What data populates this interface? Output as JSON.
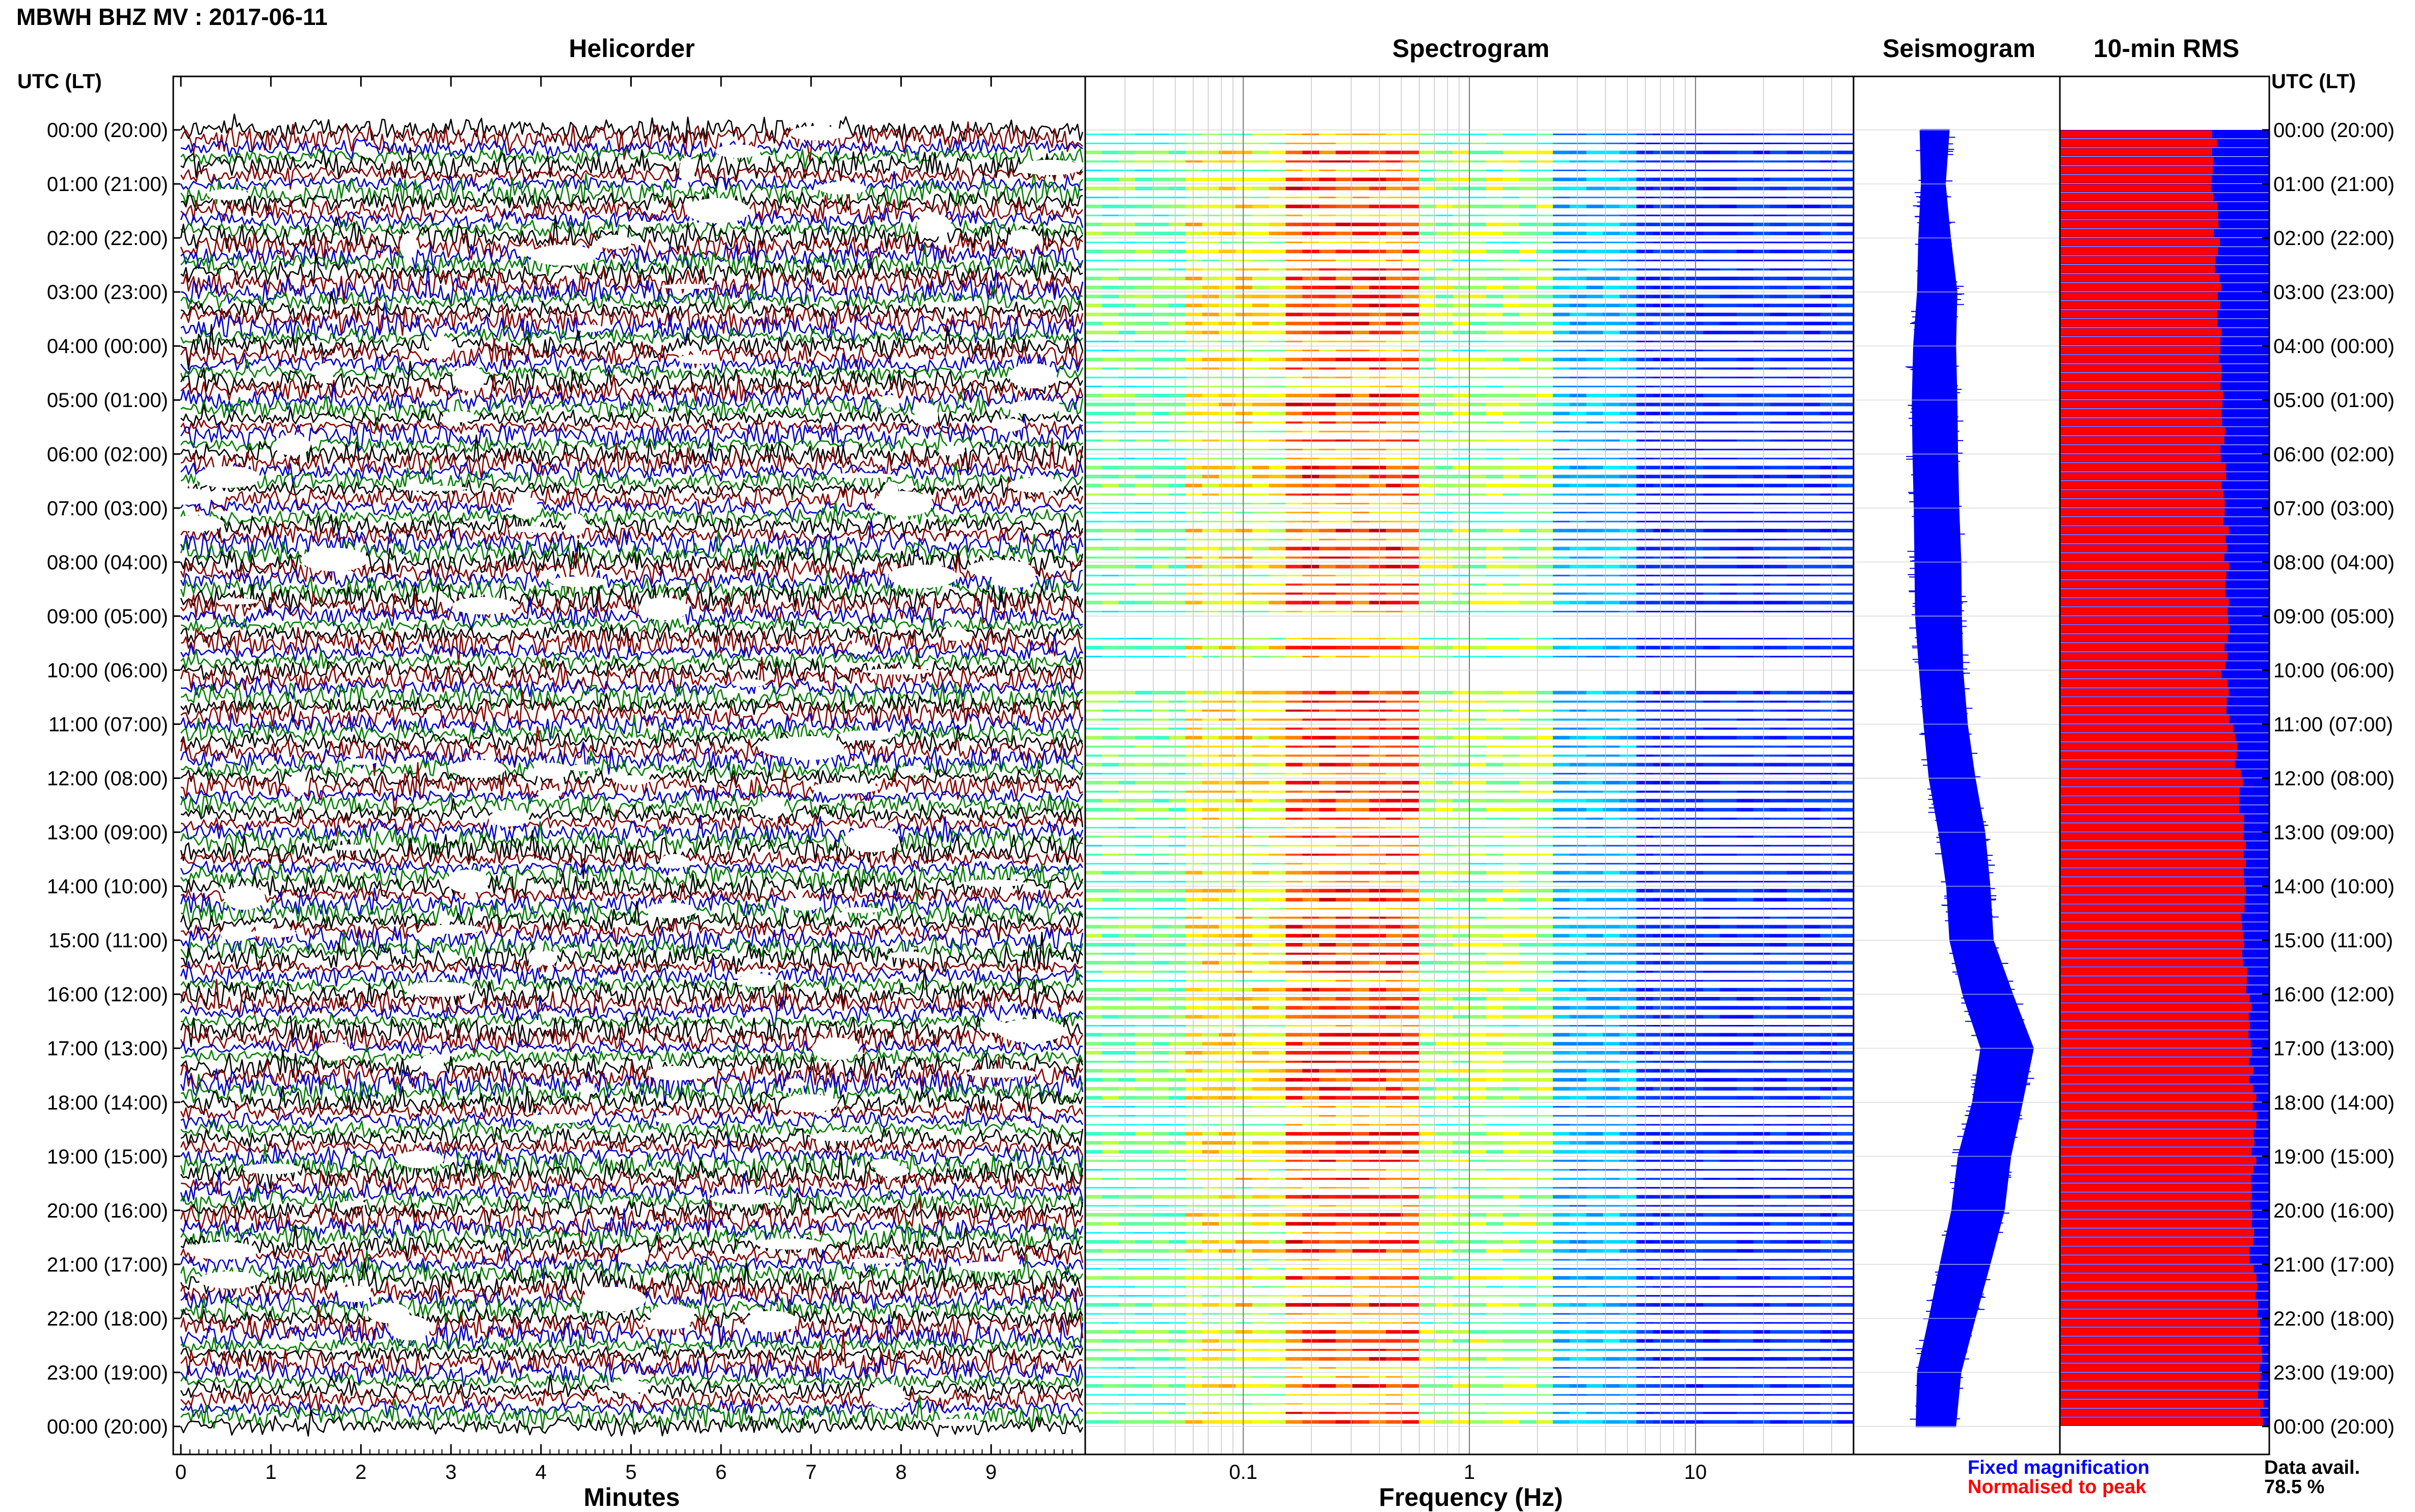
{
  "header": {
    "title": "MBWH BHZ MV : 2017-06-11",
    "time_axis_label_left": "UTC (LT)",
    "time_axis_label_right": "UTC (LT)"
  },
  "panels": {
    "helicorder": "Helicorder",
    "spectrogram": "Spectrogram",
    "seismogram": "Seismogram",
    "rms": "10-min RMS"
  },
  "legend": {
    "fixed": "Fixed magnification",
    "fixed_color": "#0000ff",
    "normalised": "Normalised to peak",
    "normalised_color": "#ff0000",
    "data_avail_label": "Data avail.",
    "data_avail_value": "78.5 %"
  },
  "chart_data": [
    {
      "type": "line",
      "name": "Helicorder",
      "title": "Helicorder",
      "xlabel": "Minutes",
      "xlim": [
        0,
        10
      ],
      "x_ticks": [
        "0",
        "1",
        "2",
        "3",
        "4",
        "5",
        "6",
        "7",
        "8",
        "9"
      ],
      "y_tick_labels": [
        "00:00 (20:00)",
        "01:00 (21:00)",
        "02:00 (22:00)",
        "03:00 (23:00)",
        "04:00 (00:00)",
        "05:00 (01:00)",
        "06:00 (02:00)",
        "07:00 (03:00)",
        "08:00 (04:00)",
        "09:00 (05:00)",
        "10:00 (06:00)",
        "11:00 (07:00)",
        "12:00 (08:00)",
        "13:00 (09:00)",
        "14:00 (10:00)",
        "15:00 (11:00)",
        "16:00 (12:00)",
        "17:00 (13:00)",
        "18:00 (14:00)",
        "19:00 (15:00)",
        "20:00 (16:00)",
        "21:00 (17:00)",
        "22:00 (18:00)",
        "23:00 (19:00)",
        "00:00 (20:00)"
      ],
      "trace_colors": [
        "#000000",
        "#8b0000",
        "#0000cd",
        "#008000"
      ],
      "traces_per_hour": 6
    },
    {
      "type": "heatmap",
      "name": "Spectrogram",
      "title": "Spectrogram",
      "xlabel": "Frequency (Hz)",
      "x_scale": "log",
      "xlim": [
        0.02,
        50
      ],
      "x_ticks": [
        "0.1",
        "1",
        "10"
      ],
      "ylim": [
        0,
        24
      ],
      "colormap": "jet",
      "low_energy_hours": [
        9.0,
        9.2,
        9.4,
        9.6,
        9.8,
        10.0,
        10.2,
        10.4
      ]
    },
    {
      "type": "line",
      "name": "Seismogram",
      "title": "Seismogram",
      "series_color": "#0000ff",
      "ylim": [
        0,
        24
      ],
      "hours": [
        0,
        1,
        2,
        3,
        4,
        5,
        6,
        7,
        8,
        9,
        10,
        11,
        12,
        13,
        14,
        15,
        16,
        17,
        18,
        19,
        20,
        21,
        22,
        23,
        24
      ],
      "center": [
        0.78,
        0.76,
        0.78,
        0.82,
        0.78,
        0.78,
        0.79,
        0.81,
        0.83,
        0.84,
        0.88,
        0.95,
        1.05,
        1.2,
        1.3,
        1.35,
        1.6,
        1.9,
        1.75,
        1.55,
        1.45,
        1.25,
        1.05,
        0.85,
        0.8
      ],
      "half_width": [
        0.22,
        0.18,
        0.24,
        0.3,
        0.32,
        0.34,
        0.34,
        0.34,
        0.35,
        0.35,
        0.33,
        0.33,
        0.35,
        0.35,
        0.33,
        0.33,
        0.38,
        0.4,
        0.38,
        0.4,
        0.4,
        0.38,
        0.35,
        0.33,
        0.3
      ]
    },
    {
      "type": "bar",
      "name": "10-min RMS",
      "title": "10-min RMS",
      "series": [
        {
          "name": "Fixed magnification",
          "color": "#0000ff"
        },
        {
          "name": "Normalised to peak",
          "color": "#ff0000"
        }
      ],
      "bins_per_hour": 6,
      "xlim": [
        0,
        1
      ],
      "fixed_value": 1.0,
      "red_hourly": [
        0.74,
        0.73,
        0.75,
        0.76,
        0.76,
        0.77,
        0.78,
        0.79,
        0.8,
        0.8,
        0.78,
        0.82,
        0.86,
        0.88,
        0.88,
        0.87,
        0.9,
        0.91,
        0.93,
        0.93,
        0.92,
        0.92,
        0.95,
        0.96,
        0.96
      ]
    }
  ]
}
